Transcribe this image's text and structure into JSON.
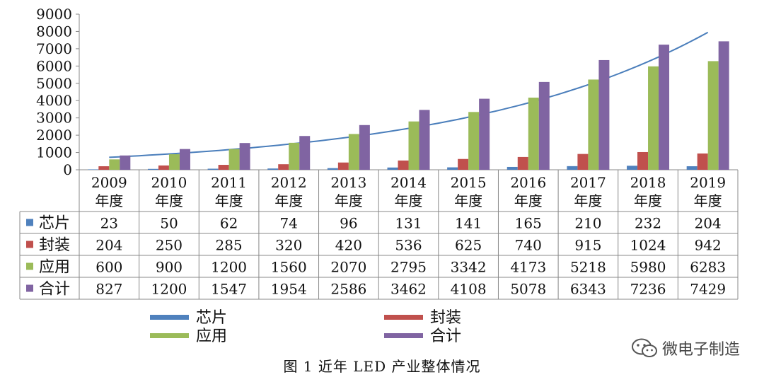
{
  "chart_data": {
    "type": "bar",
    "categories": [
      "2009年度",
      "2010年度",
      "2011年度",
      "2012年度",
      "2013年度",
      "2014年度",
      "2015年度",
      "2016年度",
      "2017年度",
      "2018年度",
      "2019年度"
    ],
    "category_lines": [
      [
        "2009",
        "年度"
      ],
      [
        "2010",
        "年度"
      ],
      [
        "2011",
        "年度"
      ],
      [
        "2012",
        "年度"
      ],
      [
        "2013",
        "年度"
      ],
      [
        "2014",
        "年度"
      ],
      [
        "2015",
        "年度"
      ],
      [
        "2016",
        "年度"
      ],
      [
        "2017",
        "年度"
      ],
      [
        "2018",
        "年度"
      ],
      [
        "2019",
        "年度"
      ]
    ],
    "series": [
      {
        "name": "芯片",
        "color": "#4f81bd",
        "values": [
          23,
          50,
          62,
          74,
          96,
          131,
          141,
          165,
          210,
          232,
          204
        ]
      },
      {
        "name": "封装",
        "color": "#c0504d",
        "values": [
          204,
          250,
          285,
          320,
          420,
          536,
          625,
          740,
          915,
          1024,
          942
        ]
      },
      {
        "name": "应用",
        "color": "#9bbb59",
        "values": [
          600,
          900,
          1200,
          1560,
          2070,
          2795,
          3342,
          4173,
          5218,
          5980,
          6283
        ]
      },
      {
        "name": "合计",
        "color": "#8064a2",
        "values": [
          827,
          1200,
          1547,
          1954,
          2586,
          3462,
          4108,
          5078,
          6343,
          7236,
          7429
        ]
      }
    ],
    "ylim": [
      0,
      9000
    ],
    "yticks": [
      "0",
      "1000",
      "2000",
      "3000",
      "4000",
      "5000",
      "6000",
      "7000",
      "8000",
      "9000"
    ],
    "trendline": {
      "color": "#4a7ebb",
      "type": "exponential",
      "start": 720,
      "end": 7950
    },
    "data_table": true,
    "legend_position": "bottom",
    "grid": false
  },
  "caption": "图 1 近年 LED 产业整体情况",
  "watermark": {
    "text": "微电子制造",
    "icon": "wechat-icon"
  }
}
